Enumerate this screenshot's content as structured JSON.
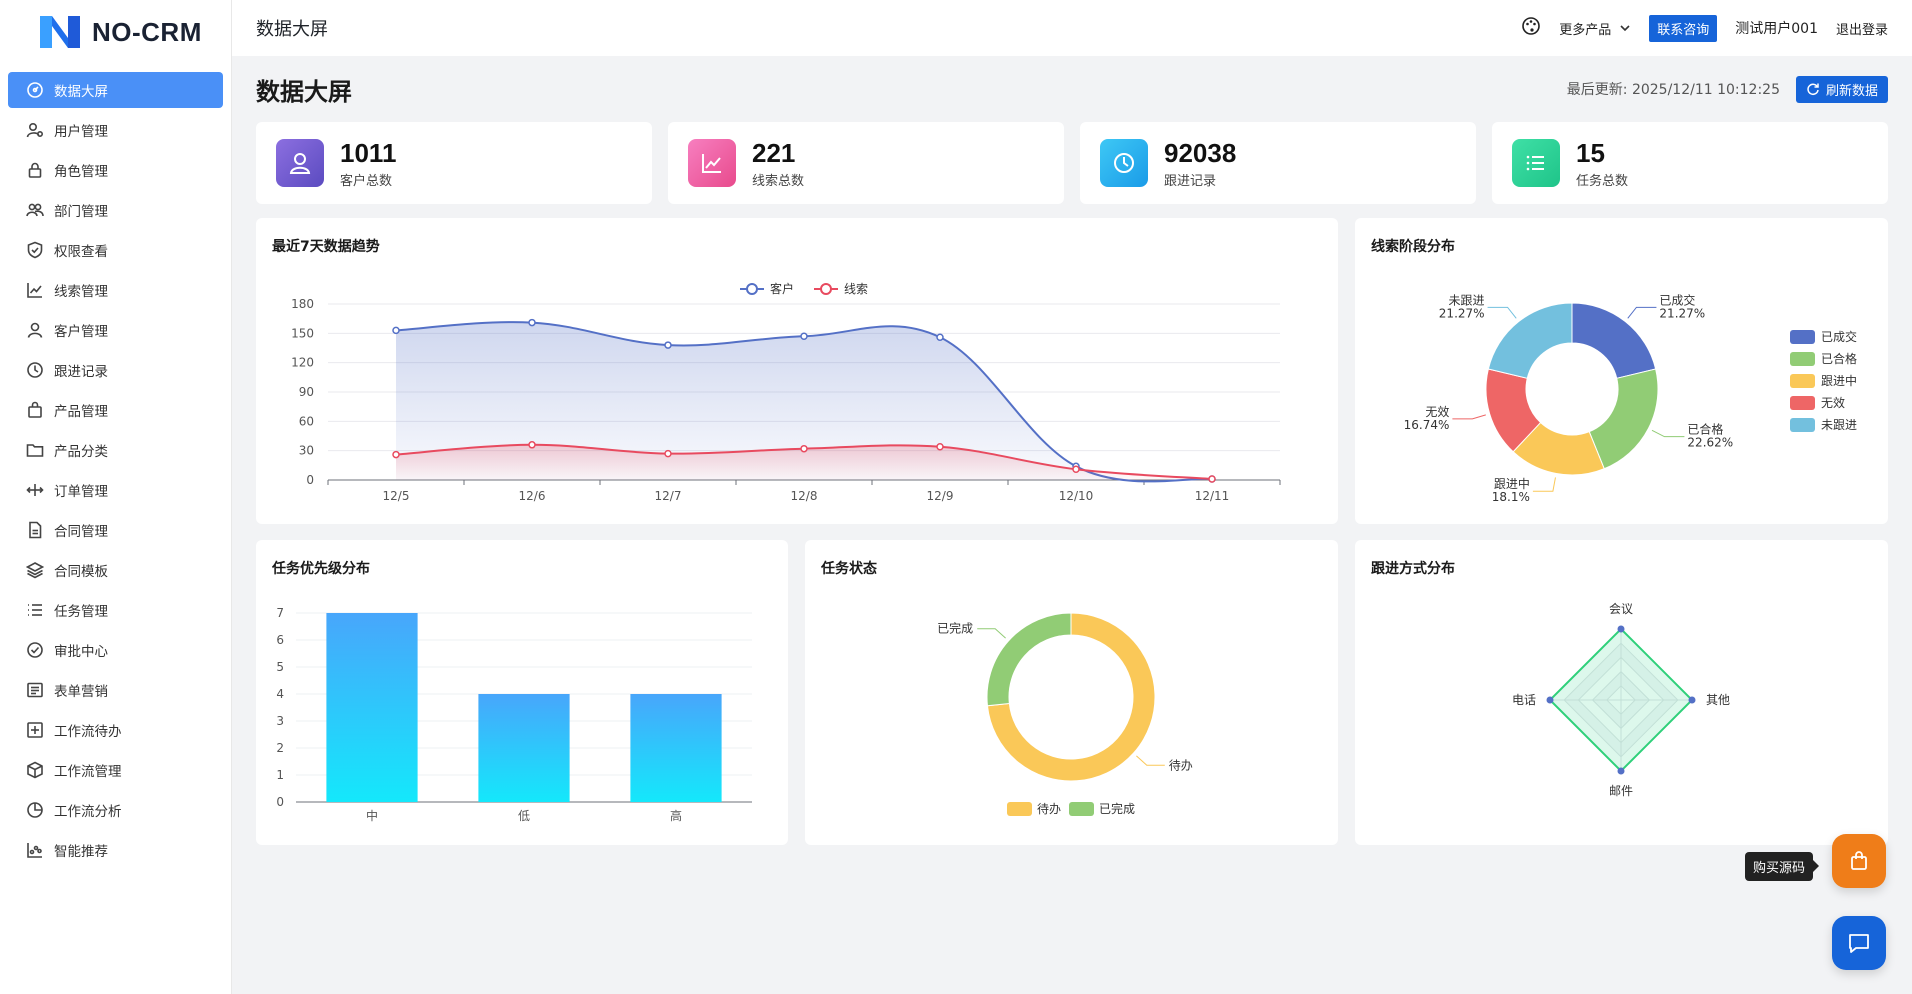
{
  "app": {
    "logo_text": "NO-CRM",
    "header_title": "数据大屏"
  },
  "header": {
    "more_products": "更多产品",
    "contact": "联系咨询",
    "username": "测试用户001",
    "logout": "退出登录"
  },
  "sidebar": {
    "items": [
      {
        "label": "数据大屏",
        "icon": "dashboard-icon"
      },
      {
        "label": "用户管理",
        "icon": "user-settings-icon"
      },
      {
        "label": "角色管理",
        "icon": "lock-icon"
      },
      {
        "label": "部门管理",
        "icon": "team-icon"
      },
      {
        "label": "权限查看",
        "icon": "shield-icon"
      },
      {
        "label": "线索管理",
        "icon": "line-chart-icon"
      },
      {
        "label": "客户管理",
        "icon": "user-icon"
      },
      {
        "label": "跟进记录",
        "icon": "clock-icon"
      },
      {
        "label": "产品管理",
        "icon": "bag-icon"
      },
      {
        "label": "产品分类",
        "icon": "folder-icon"
      },
      {
        "label": "订单管理",
        "icon": "arrows-icon"
      },
      {
        "label": "合同管理",
        "icon": "document-icon"
      },
      {
        "label": "合同模板",
        "icon": "layers-icon"
      },
      {
        "label": "任务管理",
        "icon": "list-icon"
      },
      {
        "label": "审批中心",
        "icon": "check-circle-icon"
      },
      {
        "label": "表单营销",
        "icon": "form-icon"
      },
      {
        "label": "工作流待办",
        "icon": "add-box-icon"
      },
      {
        "label": "工作流管理",
        "icon": "cube-icon"
      },
      {
        "label": "工作流分析",
        "icon": "pie-icon"
      },
      {
        "label": "智能推荐",
        "icon": "scatter-icon"
      }
    ]
  },
  "page": {
    "title": "数据大屏",
    "last_update": "最后更新: 2025/12/11 10:12:25",
    "refresh": "刷新数据"
  },
  "stats": [
    {
      "value": "1011",
      "label": "客户总数",
      "icon": "user-icon",
      "color": "#7a5bd0"
    },
    {
      "value": "221",
      "label": "线索总数",
      "icon": "trend-icon",
      "color": "#ee5fa5"
    },
    {
      "value": "92038",
      "label": "跟进记录",
      "icon": "clock-icon",
      "color": "#23b4f0"
    },
    {
      "value": "15",
      "label": "任务总数",
      "icon": "list-icon",
      "color": "#2fd39a"
    }
  ],
  "chart_data": [
    {
      "type": "area",
      "title": "最近7天数据趋势",
      "categories": [
        "12/5",
        "12/6",
        "12/7",
        "12/8",
        "12/9",
        "12/10",
        "12/11"
      ],
      "series": [
        {
          "name": "客户",
          "values": [
            153,
            161,
            138,
            147,
            146,
            14,
            1
          ],
          "color": "#5470c6"
        },
        {
          "name": "线索",
          "values": [
            26,
            36,
            27,
            32,
            34,
            11,
            1
          ],
          "color": "#e84a5f"
        }
      ],
      "yticks": [
        0,
        30,
        60,
        90,
        120,
        150,
        180
      ],
      "ylim": [
        0,
        180
      ]
    },
    {
      "type": "pie",
      "title": "线索阶段分布",
      "slices": [
        {
          "name": "已成交",
          "value": 21.27,
          "label": "21.27%",
          "color": "#5470c6"
        },
        {
          "name": "已合格",
          "value": 22.62,
          "label": "22.62%",
          "color": "#91cc75"
        },
        {
          "name": "跟进中",
          "value": 18.1,
          "label": "18.1%",
          "color": "#fac858"
        },
        {
          "name": "无效",
          "value": 16.74,
          "label": "16.74%",
          "color": "#ee6666"
        },
        {
          "name": "未跟进",
          "value": 21.27,
          "label": "21.27%",
          "color": "#73c0de"
        }
      ]
    },
    {
      "type": "bar",
      "title": "任务优先级分布",
      "categories": [
        "中",
        "低",
        "高"
      ],
      "values": [
        7,
        4,
        4
      ],
      "yticks": [
        0,
        1,
        2,
        3,
        4,
        5,
        6,
        7
      ],
      "ylim": [
        0,
        7
      ]
    },
    {
      "type": "pie",
      "title": "任务状态",
      "slices": [
        {
          "name": "待办",
          "value": 11,
          "color": "#fac858"
        },
        {
          "name": "已完成",
          "value": 4,
          "color": "#91cc75"
        }
      ]
    },
    {
      "type": "radar",
      "title": "跟进方式分布",
      "indicators": [
        "会议",
        "其他",
        "邮件",
        "电话"
      ],
      "values": [
        1,
        1,
        1,
        1
      ]
    }
  ],
  "fab": {
    "buy_tooltip": "购买源码"
  }
}
